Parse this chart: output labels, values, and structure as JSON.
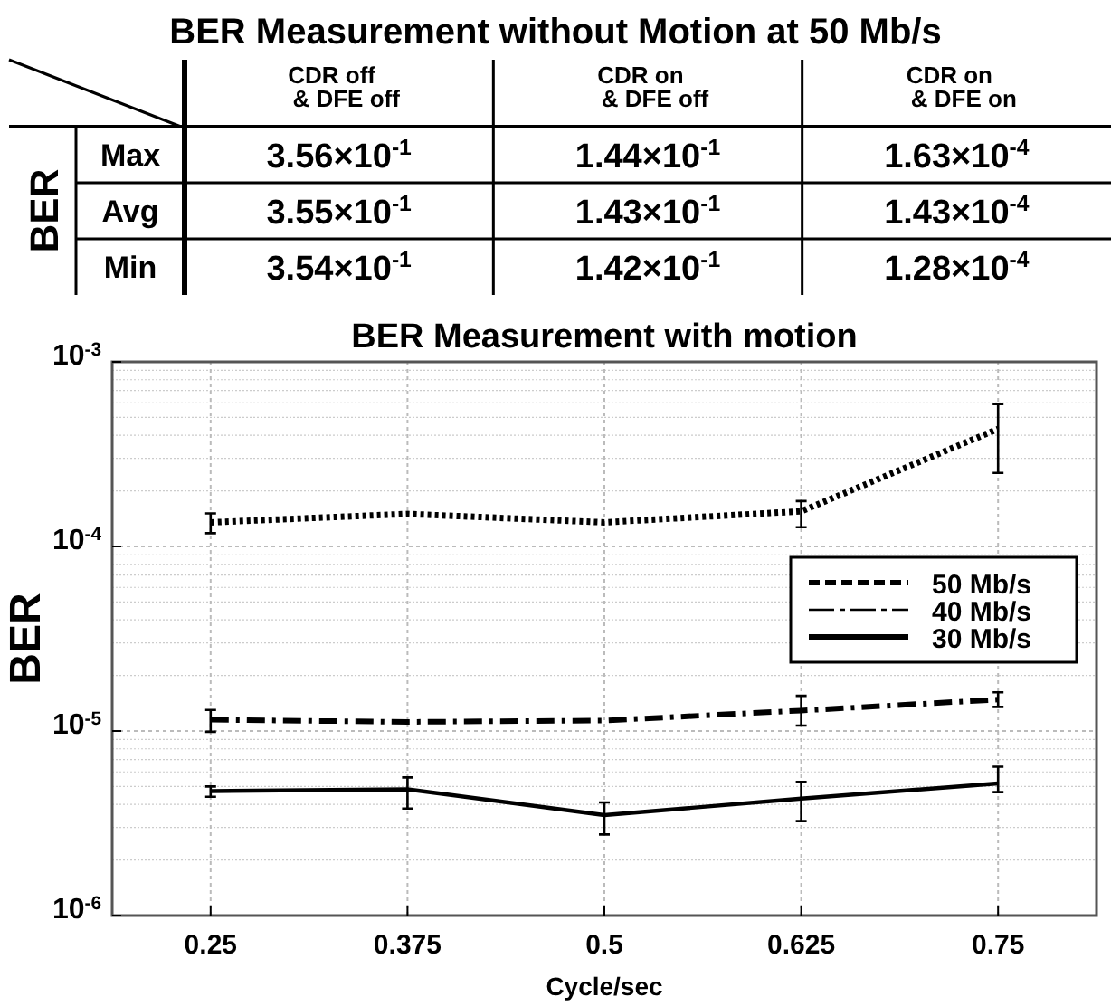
{
  "chart_data": [
    {
      "type": "other",
      "title": "BER Measurement without Motion at 50 Mb/s",
      "ylabel": "BER",
      "categories": [
        "CDR off\n& DFE off",
        "CDR on\n& DFE off",
        "CDR on\n& DFE on"
      ],
      "y_categories": [
        "Max",
        "Avg",
        "Min"
      ],
      "cell_labels": [
        [
          "3.56×10$^{-1}$",
          "1.44×10$^{-1}$",
          "1.63×10$^{-4}$"
        ],
        [
          "3.55×10$^{-1}$",
          "1.43×10$^{-1}$",
          "1.43×10$^{-4}$"
        ],
        [
          "3.54×10$^{-1}$",
          "1.42×10$^{-1}$",
          "1.28×10$^{-4}$"
        ]
      ]
    },
    {
      "type": "line",
      "title": "BER Measurement with motion",
      "xlabel": "Cycle/sec",
      "ylabel": "BER",
      "x": [
        0.25,
        0.375,
        0.5,
        0.625,
        0.75
      ],
      "xlim": [
        0.1875,
        0.8125
      ],
      "xticks": [
        0.25,
        0.375,
        0.5,
        0.625,
        0.75
      ],
      "log": "y",
      "ylim": [
        1e-06,
        0.001
      ],
      "yticks": [
        {
          "value": 0.001,
          "label": "10$^{-3}$"
        },
        {
          "value": 0.0001,
          "label": "10$^{-4}$"
        },
        {
          "value": 1e-05,
          "label": "10$^{-5}$"
        },
        {
          "value": 1e-06,
          "label": "10$^{-6}$"
        }
      ],
      "grid": true,
      "legend": "right",
      "series": [
        {
          "name": "50 Mb/s",
          "color": "#000000",
          "line_style": "dotted",
          "values": [
            0.000135,
            0.00015,
            0.000135,
            0.000155,
            0.000433
          ],
          "errors": [
            [
              0.000118,
              0.000151
            ],
            null,
            null,
            [
              0.000127,
              0.000176
            ],
            [
              0.00025,
              0.00059
            ]
          ]
        },
        {
          "name": "40 Mb/s",
          "color": "#000000",
          "line_style": "dashed",
          "values": [
            1.15e-05,
            1.12e-05,
            1.14e-05,
            1.29e-05,
            1.48e-05
          ],
          "errors": [
            [
              9.9e-06,
              1.3e-05
            ],
            null,
            null,
            [
              1.07e-05,
              1.55e-05
            ],
            [
              1.35e-05,
              1.62e-05
            ]
          ]
        },
        {
          "name": "30 Mb/s",
          "color": "#000000",
          "line_style": "solid",
          "values": [
            4.72e-06,
            4.83e-06,
            3.5e-06,
            4.3e-06,
            5.2e-06
          ],
          "errors": [
            [
              4.4e-06,
              5e-06
            ],
            [
              3.8e-06,
              5.6e-06
            ],
            [
              2.75e-06,
              4.1e-06
            ],
            [
              3.25e-06,
              5.3e-06
            ],
            [
              4.66e-06,
              6.4e-06
            ]
          ]
        }
      ]
    }
  ]
}
